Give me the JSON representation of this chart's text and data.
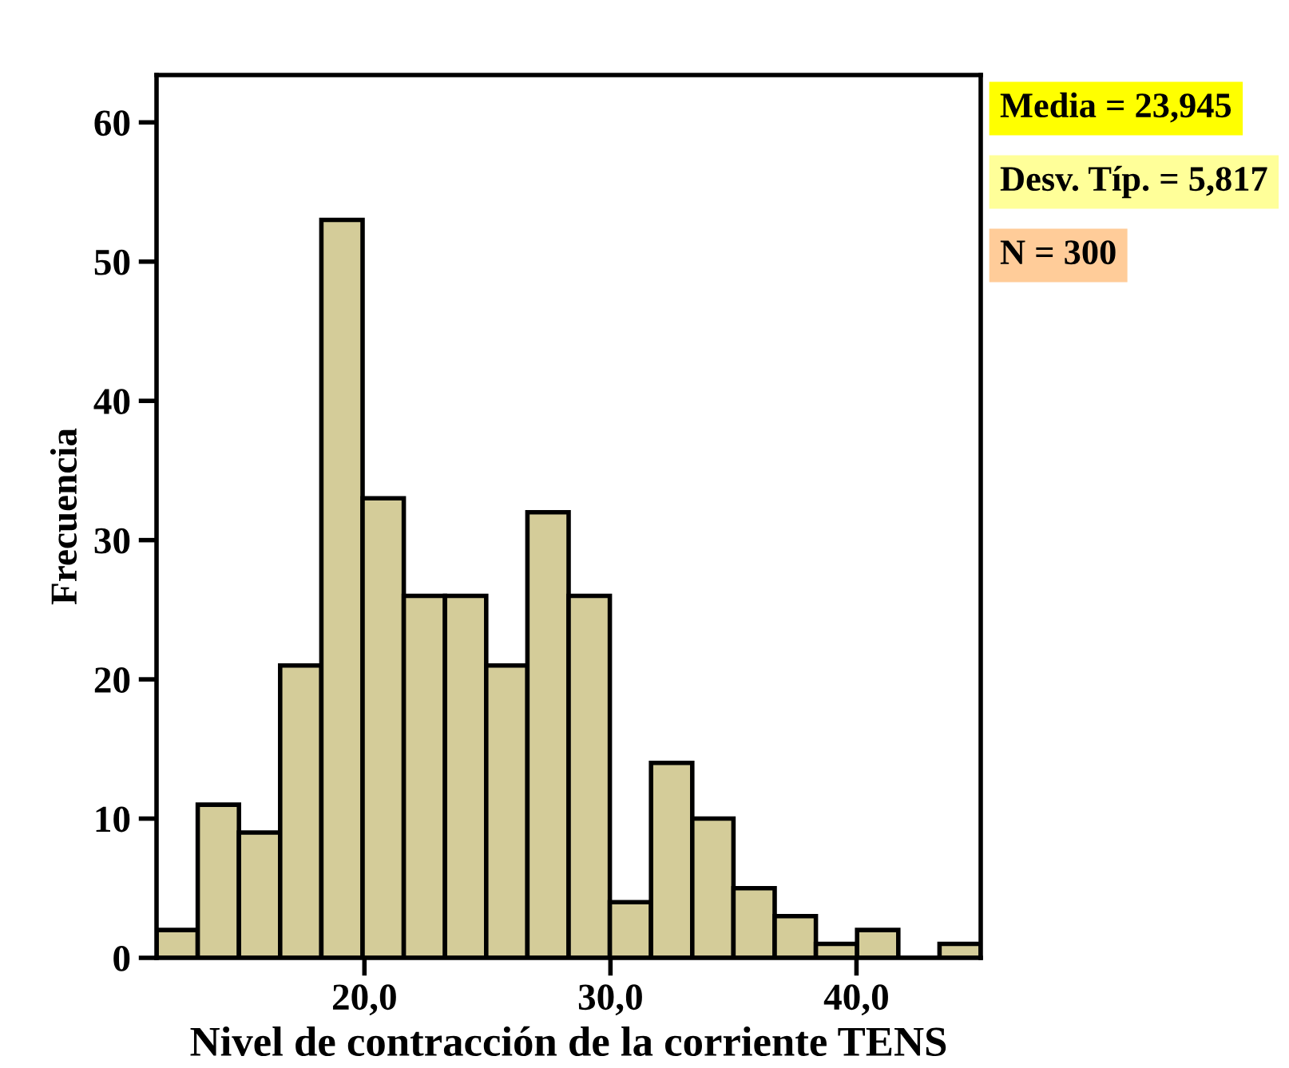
{
  "chart_data": {
    "type": "histogram",
    "xlabel": "Nivel de contracción de la corriente TENS",
    "ylabel": "Frecuencia",
    "bins": [
      11.55,
      13.225,
      14.9,
      16.575,
      18.25,
      19.925,
      21.6,
      23.275,
      24.95,
      26.625,
      28.3,
      29.975,
      31.65,
      33.325,
      35.0,
      36.675,
      38.35,
      40.025,
      41.7,
      43.375,
      45.05
    ],
    "values": [
      2,
      11,
      9,
      21,
      53,
      33,
      26,
      26,
      21,
      32,
      26,
      4,
      14,
      10,
      5,
      3,
      1,
      2,
      0,
      1
    ],
    "color": "#d4cc99",
    "xlim": [
      11.55,
      45.05
    ],
    "ylim": [
      0,
      63.4
    ],
    "xticks": [
      {
        "value": 20,
        "label": "20,0"
      },
      {
        "value": 30,
        "label": "30,0"
      },
      {
        "value": 40,
        "label": "40,0"
      }
    ],
    "yticks": [
      0,
      10,
      20,
      30,
      40,
      50,
      60
    ],
    "grid": false,
    "legend": false,
    "annotations": [
      "Media = 23,945",
      "Desv. Típ. = 5,817",
      "N = 300"
    ]
  }
}
